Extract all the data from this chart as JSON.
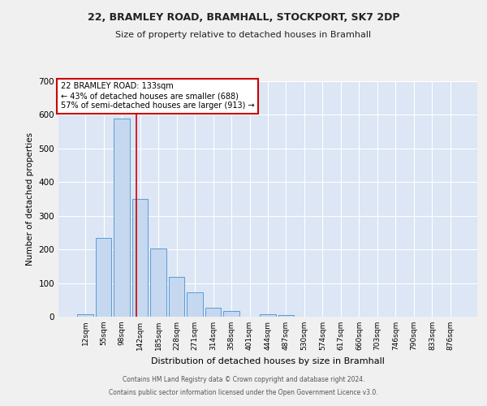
{
  "title_line1": "22, BRAMLEY ROAD, BRAMHALL, STOCKPORT, SK7 2DP",
  "title_line2": "Size of property relative to detached houses in Bramhall",
  "xlabel": "Distribution of detached houses by size in Bramhall",
  "ylabel": "Number of detached properties",
  "categories": [
    "12sqm",
    "55sqm",
    "98sqm",
    "142sqm",
    "185sqm",
    "228sqm",
    "271sqm",
    "314sqm",
    "358sqm",
    "401sqm",
    "444sqm",
    "487sqm",
    "530sqm",
    "574sqm",
    "617sqm",
    "660sqm",
    "703sqm",
    "746sqm",
    "790sqm",
    "833sqm",
    "876sqm"
  ],
  "values": [
    7,
    235,
    588,
    350,
    202,
    118,
    73,
    26,
    16,
    0,
    7,
    5,
    0,
    0,
    0,
    0,
    0,
    0,
    0,
    0,
    0
  ],
  "bar_color": "#c5d8ef",
  "bar_edge_color": "#5b9bd5",
  "property_line_label": "22 BRAMLEY ROAD: 133sqm",
  "annotation_line1": "← 43% of detached houses are smaller (688)",
  "annotation_line2": "57% of semi-detached houses are larger (913) →",
  "annotation_box_color": "#ffffff",
  "annotation_box_edge": "#cc0000",
  "vline_color": "#cc0000",
  "ylim": [
    0,
    700
  ],
  "yticks": [
    0,
    100,
    200,
    300,
    400,
    500,
    600,
    700
  ],
  "background_color": "#dce6f5",
  "grid_color": "#ffffff",
  "fig_background": "#f0f0f0",
  "footer_line1": "Contains HM Land Registry data © Crown copyright and database right 2024.",
  "footer_line2": "Contains public sector information licensed under the Open Government Licence v3.0."
}
